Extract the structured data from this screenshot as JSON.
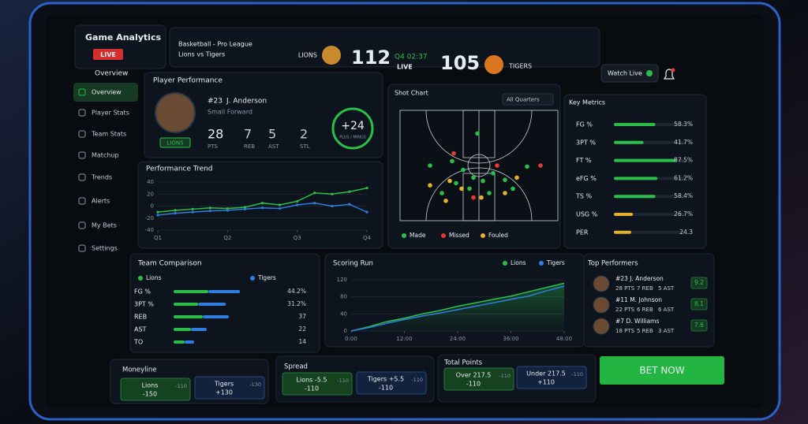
{
  "header": {
    "title": "Game Analytics",
    "live": "LIVE",
    "league": "Basketball - Pro League",
    "matchup": "Lions vs Tigers",
    "home": {
      "name": "LIONS",
      "score": 112
    },
    "clock": "Q4 02:37",
    "status": "LIVE",
    "away": {
      "name": "TIGERS",
      "score": 105
    },
    "watch": "Watch Live"
  },
  "nav": {
    "title": "Overview",
    "items": [
      "Overview",
      "Player Stats",
      "Team Stats",
      "Matchup",
      "Trends",
      "Alerts",
      "My Bets",
      "Settings"
    ]
  },
  "player": {
    "panel": "Player Performance",
    "number": "#23",
    "name": "J. Anderson",
    "position": "Small Forward",
    "team": "LIONS",
    "stats": [
      {
        "value": 28,
        "label": "PTS"
      },
      {
        "value": 7,
        "label": "REB"
      },
      {
        "value": 5,
        "label": "AST"
      },
      {
        "value": 2,
        "label": "STL"
      }
    ],
    "plus_minus": "+24",
    "plus_minus_label": "PLUS / MINUS"
  },
  "trend": {
    "type": "line",
    "title": "Performance Trend",
    "x": [
      0,
      1,
      2,
      3,
      4,
      5,
      6,
      7,
      8,
      9,
      10,
      11,
      12
    ],
    "xlim": [
      0,
      12
    ],
    "xticks": [
      {
        "value": 0,
        "label": "Q1"
      },
      {
        "value": 4,
        "label": "Q2"
      },
      {
        "value": 8,
        "label": "Q3"
      },
      {
        "value": 12,
        "label": "Q4"
      }
    ],
    "ylim": [
      -40,
      40
    ],
    "yticks": [
      40,
      20,
      0,
      -20,
      -40
    ],
    "series": [
      {
        "color": "#2bbf4a",
        "values": [
          -10,
          -7,
          -5,
          -3,
          -4,
          -2,
          5,
          2,
          8,
          22,
          20,
          24,
          30
        ]
      },
      {
        "color": "#2f7de1",
        "values": [
          -15,
          -12,
          -10,
          -8,
          -7,
          -5,
          -3,
          -4,
          2,
          5,
          0,
          3,
          -10
        ]
      }
    ]
  },
  "shots": {
    "type": "scatter",
    "title": "Shot Chart",
    "filter": "All Quarters",
    "xlim": [
      0,
      100
    ],
    "ylim": [
      0,
      100
    ],
    "series": [
      {
        "name": "Made",
        "color": "#2bbf4a",
        "x": [
          49,
          33,
          40,
          46.5,
          52.5,
          59,
          66.5,
          71.5,
          44,
          35.5,
          56.5,
          26.5,
          19,
          80.5
        ],
        "y": [
          79,
          54,
          46,
          39,
          36,
          43,
          37,
          29,
          29,
          34,
          25,
          25,
          50,
          49
        ]
      },
      {
        "name": "Missed",
        "color": "#e53935",
        "x": [
          34,
          61.5,
          89,
          46.5
        ],
        "y": [
          61,
          50,
          50,
          21
        ]
      },
      {
        "name": "Fouled",
        "color": "#e5b22a",
        "x": [
          29,
          39,
          51.5,
          66.5,
          74,
          31.5,
          19
        ],
        "y": [
          18,
          29,
          21,
          25,
          39,
          36,
          32
        ]
      }
    ]
  },
  "metrics": {
    "type": "bar",
    "title": "Key Metrics",
    "xlim": [
      0,
      100
    ],
    "categories": [
      "FG %",
      "3PT %",
      "FT %",
      "eFG %",
      "TS %",
      "USG %",
      "PER"
    ],
    "values": [
      58.3,
      41.7,
      87.5,
      61.2,
      58.4,
      26.7,
      24.3
    ],
    "value_labels": [
      "58.3%",
      "41.7%",
      "87.5%",
      "61.2%",
      "58.4%",
      "26.7%",
      "24.3"
    ],
    "colors": [
      "#2bbf4a",
      "#2bbf4a",
      "#2bbf4a",
      "#2bbf4a",
      "#2bbf4a",
      "#e5b22a",
      "#e5b22a"
    ]
  },
  "comparison": {
    "type": "bar",
    "title": "Team Comparison",
    "xlim": [
      0,
      60
    ],
    "categories": [
      "FG %",
      "3PT %",
      "REB",
      "AST",
      "TO"
    ],
    "series": [
      {
        "name": "Lions",
        "color": "#2bbf4a",
        "values": [
          44.2,
          31.2,
          37,
          22,
          14
        ],
        "value_labels": [
          "44.2%",
          "31.2%",
          "37",
          "22",
          "14"
        ]
      },
      {
        "name": "Tigers",
        "color": "#2f7de1",
        "values": [
          40,
          35,
          33,
          20,
          12
        ]
      }
    ]
  },
  "scoring": {
    "type": "line",
    "title": "Scoring Run",
    "x": [
      0,
      4,
      8,
      12,
      16,
      20,
      24,
      28,
      32,
      36,
      40,
      44,
      48
    ],
    "xlim": [
      0,
      48
    ],
    "xticks": [
      {
        "value": 0,
        "label": "0:00"
      },
      {
        "value": 12,
        "label": "12:00"
      },
      {
        "value": 24,
        "label": "24:00"
      },
      {
        "value": 36,
        "label": "36:00"
      },
      {
        "value": 48,
        "label": "48:00"
      }
    ],
    "ylim": [
      0,
      120
    ],
    "yticks": [
      120,
      80,
      40,
      0
    ],
    "series": [
      {
        "name": "Lions",
        "color": "#2bbf4a",
        "values": [
          0,
          10,
          22,
          30,
          40,
          48,
          58,
          66,
          74,
          82,
          92,
          102,
          112
        ]
      },
      {
        "name": "Tigers",
        "color": "#2f7de1",
        "values": [
          0,
          8,
          18,
          27,
          35,
          42,
          50,
          58,
          66,
          74,
          82,
          94,
          105
        ]
      }
    ]
  },
  "performers": {
    "title": "Top Performers",
    "rows": [
      {
        "name": "#23 J. Anderson",
        "stats": [
          "28 PTS",
          "7 REB",
          "5 AST"
        ],
        "rating": 9.2
      },
      {
        "name": "#11 M. Johnson",
        "stats": [
          "22 PTS",
          "6 REB",
          "6 AST"
        ],
        "rating": 8.1
      },
      {
        "name": "#7 D. Williams",
        "stats": [
          "18 PTS",
          "5 REB",
          "3 AST"
        ],
        "rating": 7.6
      }
    ]
  },
  "bets": [
    {
      "title": "Moneyline",
      "options": [
        {
          "label": "Lions",
          "odds": "-150",
          "side": "-110"
        },
        {
          "label": "Tigers",
          "odds": "+130",
          "side": "-130"
        }
      ]
    },
    {
      "title": "Spread",
      "options": [
        {
          "label": "Lions -5.5",
          "odds": "-110",
          "side": "-110"
        },
        {
          "label": "Tigers +5.5",
          "odds": "-110",
          "side": "-110"
        }
      ]
    },
    {
      "title": "Total Points",
      "options": [
        {
          "label": "Over 217.5",
          "odds": "-110",
          "side": "-110"
        },
        {
          "label": "Under 217.5",
          "odds": "+110",
          "side": "-110"
        }
      ]
    }
  ],
  "bet_button": "BET NOW"
}
